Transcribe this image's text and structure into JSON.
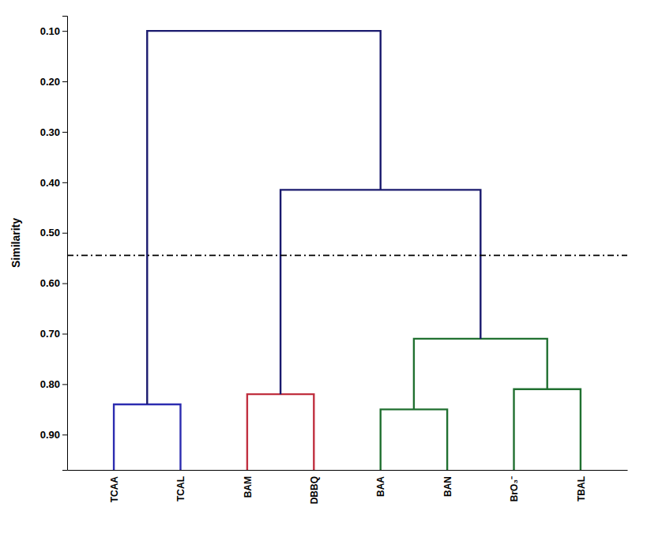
{
  "chart_data": {
    "type": "dendrogram",
    "y_label": "Similarity",
    "categories": [
      "TCAA",
      "TCAL",
      "BAM",
      "DBBQ",
      "BAA",
      "BAN",
      "BrO₃⁻",
      "TBAL"
    ],
    "merges": [
      {
        "left": 0,
        "right": 1,
        "value": 0.84,
        "color": "#2c2cb0"
      },
      {
        "left": 2,
        "right": 3,
        "value": 0.82,
        "color": "#c03040"
      },
      {
        "left": 4,
        "right": 5,
        "value": 0.85,
        "color": "#207030"
      },
      {
        "left": 6,
        "right": 7,
        "value": 0.81,
        "color": "#207030"
      },
      {
        "left": 10,
        "right": 11,
        "value": 0.71,
        "color": "#207030"
      },
      {
        "left": 9,
        "right": 12,
        "value": 0.415,
        "color": "#1a1a6e"
      },
      {
        "left": 8,
        "right": 13,
        "value": 0.1,
        "color": "#1a1a6e"
      }
    ],
    "cutoff": {
      "value": 0.545,
      "color": "#000000",
      "line_style": "dashdot"
    },
    "ylim": [
      0.97,
      0.07
    ],
    "yticks": [
      {
        "value": 0.1,
        "label": "0.10"
      },
      {
        "value": 0.2,
        "label": "0.20"
      },
      {
        "value": 0.3,
        "label": "0.30"
      },
      {
        "value": 0.4,
        "label": "0.40"
      },
      {
        "value": 0.5,
        "label": "0.50"
      },
      {
        "value": 0.6,
        "label": "0.60"
      },
      {
        "value": 0.7,
        "label": "0.70"
      },
      {
        "value": 0.8,
        "label": "0.80"
      },
      {
        "value": 0.9,
        "label": "0.90"
      }
    ]
  }
}
